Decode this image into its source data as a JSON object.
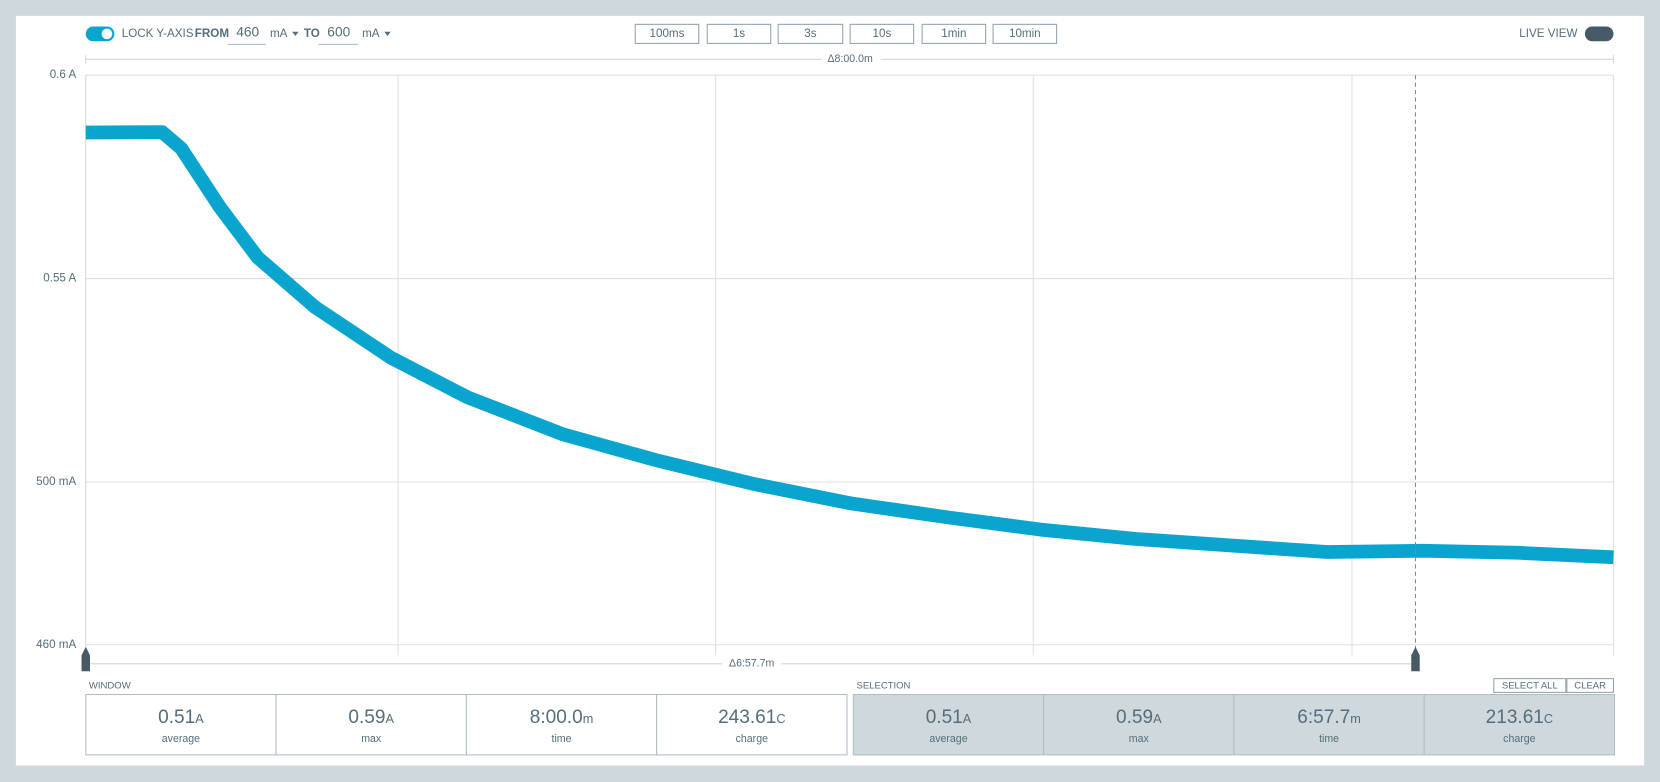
{
  "toolbar": {
    "lock_label": "LOCK Y-AXIS",
    "from_label": "FROM",
    "from_value": "460",
    "from_unit": "mA",
    "to_label": "TO",
    "to_value": "600",
    "to_unit": "mA",
    "time_buttons": [
      "100ms",
      "1s",
      "3s",
      "10s",
      "1min",
      "10min"
    ],
    "live_view": "LIVE VIEW"
  },
  "chart_data": {
    "type": "line",
    "window_delta": "Δ8:00.0m",
    "selection_delta": "Δ6:57.7m",
    "xlim": [
      0,
      8
    ],
    "ylim": [
      460,
      600
    ],
    "yticks": [
      {
        "value": 600,
        "label": "0.6 A"
      },
      {
        "value": 550,
        "label": "0.55 A"
      },
      {
        "value": 500,
        "label": "500 mA"
      },
      {
        "value": 460,
        "label": "460 mA"
      }
    ],
    "grid": true,
    "series": [
      {
        "color": "#0aa5cf",
        "x": [
          0,
          0.4,
          0.5,
          0.7,
          0.9,
          1.2,
          1.6,
          2,
          2.5,
          3,
          3.5,
          4,
          4.5,
          5,
          5.5,
          6,
          6.5,
          7,
          7.5,
          8
        ],
        "values": [
          585.9,
          586,
          582,
          567.7,
          555.2,
          543,
          530.5,
          520.8,
          511.7,
          505.2,
          499.5,
          494.8,
          491.4,
          488.3,
          486,
          484.4,
          482.8,
          483.1,
          482.6,
          481.5
        ]
      }
    ]
  },
  "window": {
    "title": "WINDOW",
    "stats": [
      {
        "value": "0.51",
        "unit": "A",
        "label": "average"
      },
      {
        "value": "0.59",
        "unit": "A",
        "label": "max"
      },
      {
        "value": "8:00.0",
        "unit": "m",
        "label": "time"
      },
      {
        "value": "243.61",
        "unit": "C",
        "label": "charge"
      }
    ]
  },
  "selection": {
    "title": "SELECTION",
    "buttons": [
      "SELECT ALL",
      "CLEAR"
    ],
    "stats": [
      {
        "value": "0.51",
        "unit": "A",
        "label": "average"
      },
      {
        "value": "0.59",
        "unit": "A",
        "label": "max"
      },
      {
        "value": "6:57.7",
        "unit": "m",
        "label": "time"
      },
      {
        "value": "213.61",
        "unit": "C",
        "label": "charge"
      }
    ]
  }
}
